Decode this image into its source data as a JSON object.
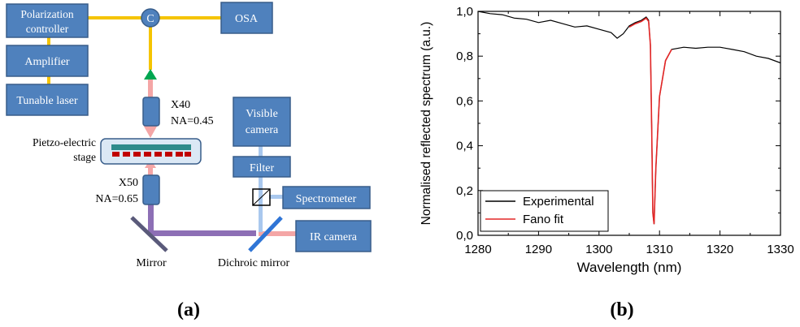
{
  "panel_a": {
    "boxes": {
      "polarization_controller": [
        "Polarization",
        "controller"
      ],
      "amplifier": "Amplifier",
      "tunable_laser": "Tunable laser",
      "osa": "OSA",
      "visible_camera": [
        "Visible",
        "camera"
      ],
      "filter": "Filter",
      "spectrometer": "Spectrometer",
      "ir_camera": "IR camera"
    },
    "circulator": "C",
    "labels": {
      "x40": "X40",
      "na_040": "NA=0.45",
      "x50": "X50",
      "na_065": "NA=0.65",
      "stage": [
        "Pietzo-electric",
        "stage"
      ],
      "mirror": "Mirror",
      "dichroic": "Dichroic mirror"
    },
    "caption": "(a)"
  },
  "panel_b": {
    "caption": "(b)"
  },
  "colors": {
    "box_fill": "#4f81bd",
    "box_stroke": "#385d8a",
    "fiber": "#f5c400",
    "arrow_green": "#00a651",
    "beam_pink": "#f4a6a6",
    "beam_blue": "#a9c8ee",
    "beam_purple": "#8d6fb5",
    "mirror_blue": "#2f75d6",
    "stage_teal": "#2e8b8b",
    "stage_red": "#c00000",
    "experimental": "#000000",
    "fano": "#e32626"
  },
  "chart_data": {
    "type": "line",
    "xlabel": "Wavelength (nm)",
    "ylabel": "Normalised reflected spectrum (a.u.)",
    "xlim": [
      1280,
      1330
    ],
    "ylim": [
      0.0,
      1.0
    ],
    "xticks": [
      "1280",
      "1290",
      "1300",
      "1310",
      "1320",
      "1330"
    ],
    "yticks": [
      "0,0",
      "0,2",
      "0,4",
      "0,6",
      "0,8",
      "1,0"
    ],
    "legend_position": "bottom-left",
    "series": [
      {
        "name": "Experimental",
        "color": "#000000",
        "x": [
          1280,
          1282,
          1284,
          1286,
          1288,
          1290,
          1292,
          1294,
          1296,
          1298,
          1300,
          1302,
          1303,
          1304,
          1305,
          1306,
          1307,
          1307.8,
          1308.2,
          1308.5,
          1308.7,
          1308.9,
          1309.1,
          1309.4,
          1310,
          1311,
          1312,
          1314,
          1316,
          1318,
          1320,
          1322,
          1324,
          1326,
          1328,
          1330
        ],
        "y": [
          1.0,
          0.99,
          0.985,
          0.97,
          0.965,
          0.95,
          0.96,
          0.945,
          0.93,
          0.935,
          0.92,
          0.905,
          0.88,
          0.9,
          0.935,
          0.95,
          0.96,
          0.975,
          0.96,
          0.85,
          0.5,
          0.1,
          0.05,
          0.3,
          0.62,
          0.78,
          0.83,
          0.84,
          0.835,
          0.84,
          0.84,
          0.83,
          0.82,
          0.8,
          0.79,
          0.77
        ]
      },
      {
        "name": "Fano fit",
        "color": "#e32626",
        "x": [
          1305,
          1306,
          1307,
          1307.8,
          1308.2,
          1308.5,
          1308.7,
          1308.9,
          1309.1,
          1309.4,
          1310,
          1311,
          1312
        ],
        "y": [
          0.93,
          0.945,
          0.955,
          0.97,
          0.955,
          0.85,
          0.5,
          0.1,
          0.05,
          0.3,
          0.62,
          0.78,
          0.83
        ]
      }
    ]
  }
}
